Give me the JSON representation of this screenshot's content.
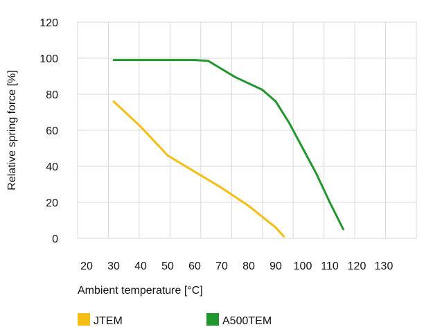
{
  "chart_data": {
    "type": "line",
    "xlabel": "Ambient temperature [°C]",
    "ylabel": "Relative spring force [%]",
    "xlim": [
      20,
      130
    ],
    "ylim": [
      0,
      120
    ],
    "x_ticks": [
      "20",
      "30",
      "40",
      "50",
      "60",
      "70",
      "80",
      "90",
      "100",
      "110",
      "120",
      "130"
    ],
    "y_ticks": [
      "0",
      "20",
      "40",
      "60",
      "80",
      "100",
      "120"
    ],
    "grid": true,
    "legend_position": "bottom-left",
    "series": [
      {
        "name": "JTEM",
        "color": "#F5BE14",
        "points": [
          [
            30,
            76
          ],
          [
            40,
            62
          ],
          [
            50,
            46
          ],
          [
            60,
            37
          ],
          [
            70,
            28
          ],
          [
            80,
            18
          ],
          [
            90,
            6
          ],
          [
            93,
            1
          ]
        ]
      },
      {
        "name": "A500TEM",
        "color": "#22962E",
        "points": [
          [
            30,
            99
          ],
          [
            40,
            99
          ],
          [
            50,
            99
          ],
          [
            60,
            99
          ],
          [
            65,
            98.5
          ],
          [
            70,
            94
          ],
          [
            75,
            89.5
          ],
          [
            80,
            86
          ],
          [
            85,
            82.5
          ],
          [
            90,
            76
          ],
          [
            95,
            64
          ],
          [
            100,
            50
          ],
          [
            105,
            36
          ],
          [
            110,
            20
          ],
          [
            115,
            5
          ]
        ]
      }
    ]
  }
}
